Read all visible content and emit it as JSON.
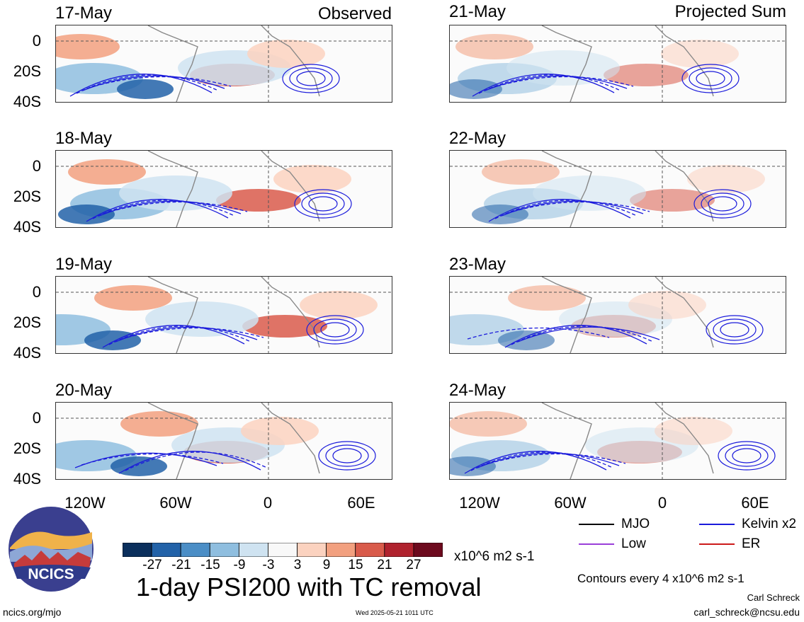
{
  "columns": {
    "left_title": "Observed",
    "right_title": "Projected Sum"
  },
  "observed_dates": [
    "17-May",
    "18-May",
    "19-May",
    "20-May"
  ],
  "projected_dates": [
    "21-May",
    "22-May",
    "23-May",
    "24-May"
  ],
  "lat_labels": [
    "0",
    "20S",
    "40S"
  ],
  "lon_labels": [
    "120W",
    "60W",
    "0",
    "60E"
  ],
  "colorbar": {
    "ticks": [
      "-27",
      "-21",
      "-15",
      "-9",
      "-3",
      "3",
      "9",
      "15",
      "21",
      "27"
    ],
    "unit": "x10^6 m2 s-1",
    "colors": [
      "#0b2f5c",
      "#2262a8",
      "#4b8ec6",
      "#8fbedf",
      "#cfe3f1",
      "#f8f8f8",
      "#fbd2bf",
      "#f2a07f",
      "#d95b4b",
      "#b0222e",
      "#6d0a1e"
    ]
  },
  "legend": {
    "items": [
      {
        "label": "MJO",
        "color": "#000000"
      },
      {
        "label": "Kelvin x2",
        "color": "#1a1adb"
      },
      {
        "label": "Low",
        "color": "#9a3fd9"
      },
      {
        "label": "ER",
        "color": "#cc1a1a"
      }
    ],
    "contour_note": "Contours every 4 x10^6 m2 s-1"
  },
  "title": "1-day PSI200 with TC removal",
  "logo_text": "NCICS",
  "footer": {
    "url": "ncics.org/mjo",
    "timestamp": "Wed 2025-05-21 1011 UTC",
    "author": "Carl Schreck",
    "email": "carl_schreck@ncsu.edu"
  }
}
